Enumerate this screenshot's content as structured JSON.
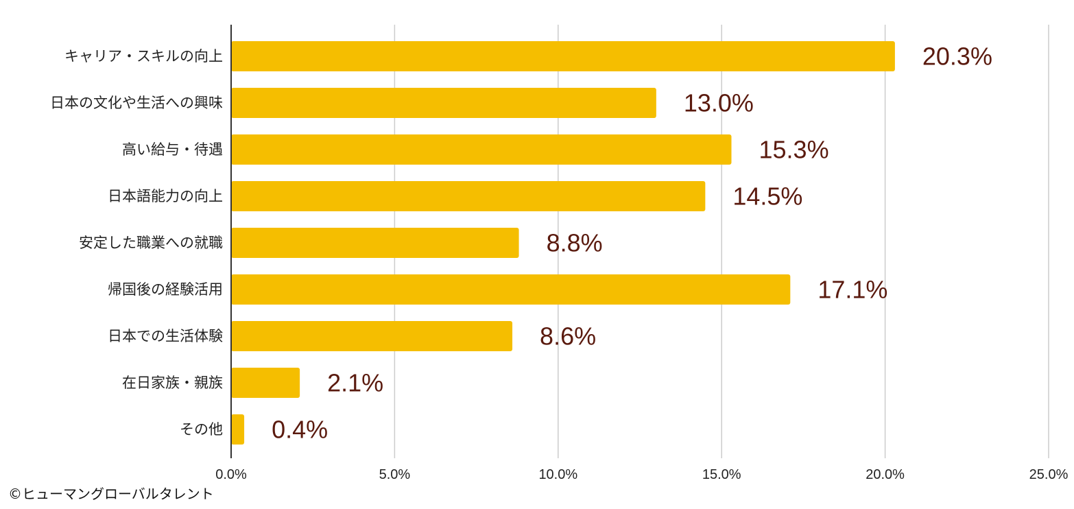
{
  "chart_data": {
    "type": "bar",
    "orientation": "horizontal",
    "categories": [
      "キャリア・スキルの向上",
      "日本の文化や生活への興味",
      "高い給与・待遇",
      "日本語能力の向上",
      "安定した職業への就職",
      "帰国後の経験活用",
      "日本での生活体験",
      "在日家族・親族",
      "その他"
    ],
    "values": [
      20.3,
      13.0,
      15.3,
      14.5,
      8.8,
      17.1,
      8.6,
      2.1,
      0.4
    ],
    "value_labels": [
      "20.3%",
      "13.0%",
      "15.3%",
      "14.5%",
      "8.8%",
      "17.1%",
      "8.6%",
      "2.1%",
      "0.4%"
    ],
    "xlim": [
      0,
      25
    ],
    "x_ticks": [
      0,
      5,
      10,
      15,
      20,
      25
    ],
    "x_tick_labels": [
      "0.0%",
      "5.0%",
      "10.0%",
      "15.0%",
      "20.0%",
      "25.0%"
    ],
    "grid": "vertical",
    "legend": "none",
    "title": "",
    "xlabel": "",
    "ylabel": "",
    "colors": {
      "bar": "#F5BE00",
      "data_label": "#5A1A0E",
      "grid": "#CCCCCC",
      "axis": "#333333"
    }
  },
  "footer": {
    "copyright": "©ヒューマングローバルタレント"
  }
}
